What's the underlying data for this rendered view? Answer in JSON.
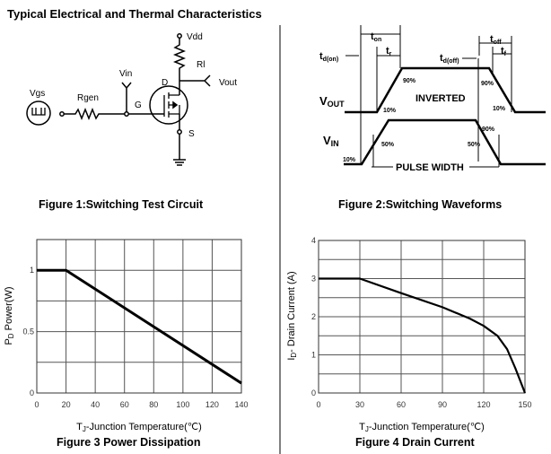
{
  "page_title": "Typical Electrical and Thermal Characteristics",
  "figure1": {
    "caption": "Figure 1:Switching Test Circuit",
    "labels": {
      "vdd": "Vdd",
      "rl": "Rl",
      "vout": "Vout",
      "vin": "Vin",
      "vgs": "Vgs",
      "rgen": "Rgen",
      "d": "D",
      "g": "G",
      "s": "S"
    }
  },
  "figure2": {
    "caption": "Figure 2:Switching Waveforms",
    "labels": {
      "ton": "t",
      "ton_sub": "on",
      "tr": "t",
      "tr_sub": "r",
      "tdon": "t",
      "tdon_sub": "d(on)",
      "tdoff": "t",
      "tdoff_sub": "d(off)",
      "toff": "t",
      "toff_sub": "off",
      "tf": "t",
      "tf_sub": "f",
      "vout": "V",
      "vout_sub": "OUT",
      "vin": "V",
      "vin_sub": "IN",
      "inverted": "INVERTED",
      "pulse_width": "PULSE WIDTH",
      "p90a": "90%",
      "p90b": "90%",
      "p10a": "10%",
      "p10b": "10%",
      "p90c": "90%",
      "p50a": "50%",
      "p50b": "50%",
      "p10c": "10%"
    }
  },
  "chart_data": [
    {
      "type": "line",
      "title": "Figure 3 Power Dissipation",
      "xlabel": "TJ-Junction Temperature(℃)",
      "ylabel": "PD  Power(W)",
      "xlim": [
        0,
        140
      ],
      "ylim": [
        0,
        1.25
      ],
      "xticks": [
        "0",
        "20",
        "40",
        "60",
        "80",
        "100",
        "120",
        "140"
      ],
      "yticks": [
        "0",
        "0.5",
        "1"
      ],
      "grid": true,
      "x": [
        0,
        20,
        140
      ],
      "y": [
        1,
        1,
        0.08
      ]
    },
    {
      "type": "line",
      "title": "Figure 4 Drain Current",
      "xlabel": "TJ-Junction Temperature(℃)",
      "ylabel": "ID- Drain Current (A)",
      "xlim": [
        0,
        150
      ],
      "ylim": [
        0,
        4
      ],
      "xticks": [
        "0",
        "30",
        "60",
        "90",
        "120",
        "150"
      ],
      "yticks": [
        "0",
        "1",
        "2",
        "3",
        "4"
      ],
      "grid": true,
      "x": [
        0,
        30,
        60,
        90,
        110,
        120,
        130,
        137,
        143,
        150
      ],
      "y": [
        3,
        3,
        2.62,
        2.25,
        1.95,
        1.76,
        1.5,
        1.15,
        0.65,
        0
      ]
    }
  ]
}
